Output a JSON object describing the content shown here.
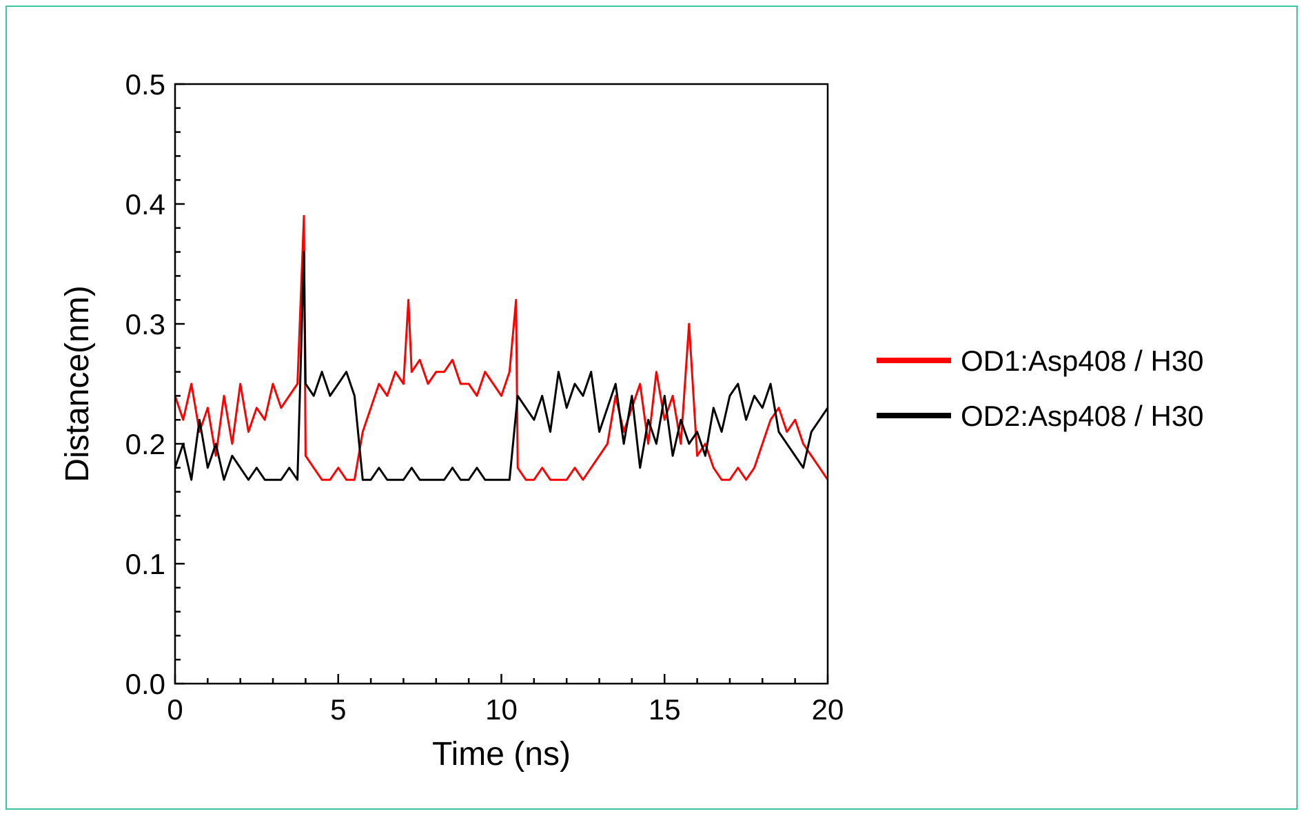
{
  "chart_data": {
    "type": "line",
    "title": "",
    "xlabel": "Time (ns)",
    "ylabel": "Distance(nm)",
    "xlim": [
      0,
      20
    ],
    "ylim": [
      0.0,
      0.5
    ],
    "x_ticks": [
      0,
      5,
      10,
      15,
      20
    ],
    "x_tick_labels": [
      "0",
      "5",
      "10",
      "15",
      "20"
    ],
    "y_ticks": [
      0.0,
      0.1,
      0.2,
      0.3,
      0.4,
      0.5
    ],
    "y_tick_labels": [
      "0.0",
      "0.1",
      "0.2",
      "0.3",
      "0.4",
      "0.5"
    ],
    "grid": false,
    "legend_position": "right-outside",
    "series": [
      {
        "name": "OD1:Asp408 / H30",
        "color": "#ff0000",
        "x": [
          0.0,
          0.25,
          0.5,
          0.75,
          1.0,
          1.25,
          1.5,
          1.75,
          2.0,
          2.25,
          2.5,
          2.75,
          3.0,
          3.25,
          3.5,
          3.75,
          3.95,
          4.0,
          4.25,
          4.5,
          4.75,
          5.0,
          5.25,
          5.5,
          5.75,
          6.0,
          6.25,
          6.5,
          6.75,
          7.0,
          7.15,
          7.25,
          7.5,
          7.75,
          8.0,
          8.25,
          8.5,
          8.75,
          9.0,
          9.25,
          9.5,
          9.75,
          10.0,
          10.25,
          10.45,
          10.5,
          10.75,
          11.0,
          11.25,
          11.5,
          11.75,
          12.0,
          12.25,
          12.5,
          12.75,
          13.0,
          13.25,
          13.5,
          13.75,
          14.0,
          14.25,
          14.5,
          14.75,
          15.0,
          15.25,
          15.5,
          15.75,
          16.0,
          16.25,
          16.5,
          16.75,
          17.0,
          17.25,
          17.5,
          17.75,
          18.0,
          18.25,
          18.5,
          18.75,
          19.0,
          19.25,
          19.5,
          19.75,
          20.0
        ],
        "y": [
          0.24,
          0.22,
          0.25,
          0.21,
          0.23,
          0.19,
          0.24,
          0.2,
          0.25,
          0.21,
          0.23,
          0.22,
          0.25,
          0.23,
          0.24,
          0.25,
          0.39,
          0.19,
          0.18,
          0.17,
          0.17,
          0.18,
          0.17,
          0.17,
          0.21,
          0.23,
          0.25,
          0.24,
          0.26,
          0.25,
          0.32,
          0.26,
          0.27,
          0.25,
          0.26,
          0.26,
          0.27,
          0.25,
          0.25,
          0.24,
          0.26,
          0.25,
          0.24,
          0.26,
          0.32,
          0.18,
          0.17,
          0.17,
          0.18,
          0.17,
          0.17,
          0.17,
          0.18,
          0.17,
          0.18,
          0.19,
          0.2,
          0.24,
          0.21,
          0.23,
          0.25,
          0.2,
          0.26,
          0.22,
          0.24,
          0.2,
          0.3,
          0.19,
          0.2,
          0.18,
          0.17,
          0.17,
          0.18,
          0.17,
          0.18,
          0.2,
          0.22,
          0.23,
          0.21,
          0.22,
          0.2,
          0.19,
          0.18,
          0.17
        ]
      },
      {
        "name": "OD2:Asp408 / H30",
        "color": "#000000",
        "x": [
          0.0,
          0.25,
          0.5,
          0.75,
          1.0,
          1.25,
          1.5,
          1.75,
          2.0,
          2.25,
          2.5,
          2.75,
          3.0,
          3.25,
          3.5,
          3.75,
          3.95,
          4.0,
          4.25,
          4.5,
          4.75,
          5.0,
          5.25,
          5.5,
          5.75,
          6.0,
          6.25,
          6.5,
          6.75,
          7.0,
          7.25,
          7.5,
          7.75,
          8.0,
          8.25,
          8.5,
          8.75,
          9.0,
          9.25,
          9.5,
          9.75,
          10.0,
          10.25,
          10.5,
          10.75,
          11.0,
          11.25,
          11.5,
          11.75,
          12.0,
          12.25,
          12.5,
          12.75,
          13.0,
          13.25,
          13.5,
          13.75,
          14.0,
          14.25,
          14.5,
          14.75,
          15.0,
          15.25,
          15.5,
          15.75,
          16.0,
          16.25,
          16.5,
          16.75,
          17.0,
          17.25,
          17.5,
          17.75,
          18.0,
          18.25,
          18.5,
          18.75,
          19.0,
          19.25,
          19.5,
          19.75,
          20.0
        ],
        "y": [
          0.18,
          0.2,
          0.17,
          0.22,
          0.18,
          0.2,
          0.17,
          0.19,
          0.18,
          0.17,
          0.18,
          0.17,
          0.17,
          0.17,
          0.18,
          0.17,
          0.36,
          0.25,
          0.24,
          0.26,
          0.24,
          0.25,
          0.26,
          0.24,
          0.17,
          0.17,
          0.18,
          0.17,
          0.17,
          0.17,
          0.18,
          0.17,
          0.17,
          0.17,
          0.17,
          0.18,
          0.17,
          0.17,
          0.18,
          0.17,
          0.17,
          0.17,
          0.17,
          0.24,
          0.23,
          0.22,
          0.24,
          0.21,
          0.26,
          0.23,
          0.25,
          0.24,
          0.26,
          0.21,
          0.23,
          0.25,
          0.2,
          0.24,
          0.18,
          0.22,
          0.2,
          0.24,
          0.19,
          0.22,
          0.2,
          0.21,
          0.19,
          0.23,
          0.21,
          0.24,
          0.25,
          0.22,
          0.24,
          0.23,
          0.25,
          0.21,
          0.2,
          0.19,
          0.18,
          0.21,
          0.22,
          0.23
        ]
      }
    ]
  }
}
